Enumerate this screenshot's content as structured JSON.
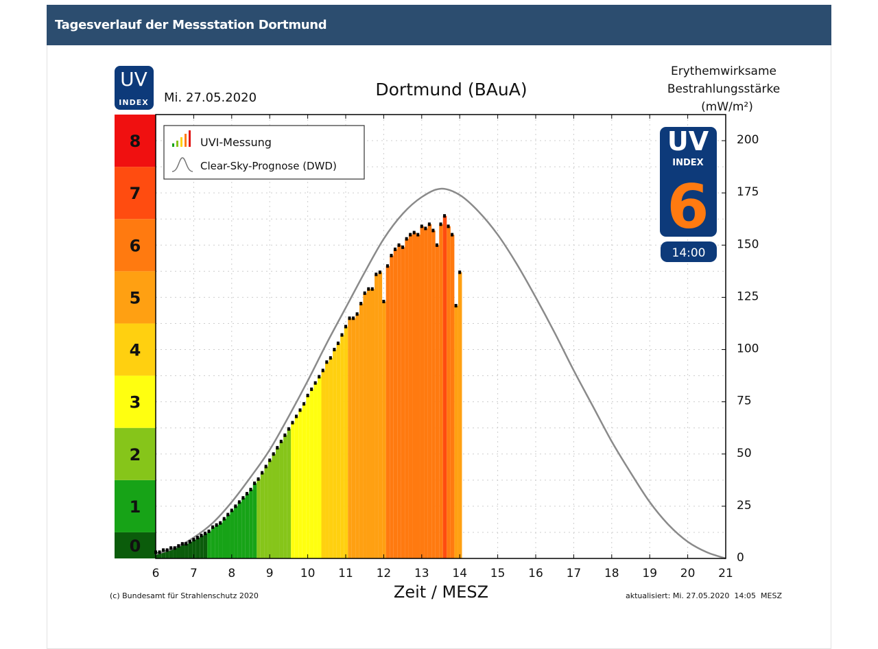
{
  "header": {
    "title": "Tagesverlauf der Messstation Dortmund"
  },
  "logo_small": {
    "line1": "UV",
    "line2": "INDEX"
  },
  "date": "Mi. 27.05.2020",
  "chart_title": "Dortmund (BAuA)",
  "right_axis_title": [
    "Erythemwirksame",
    "Bestrahlungsstärke",
    "(mW/m²)"
  ],
  "current_badge": {
    "line1": "UV",
    "line2": "INDEX",
    "value": "6",
    "time": "14:00"
  },
  "footer": {
    "copyright": "(c) Bundesamt für Strahlenschutz 2020",
    "updated": "aktualisiert: Mi. 27.05.2020  14:05  MESZ"
  },
  "colors": {
    "header": "#2c4d6f",
    "badge": "#0d3a7a",
    "badge_value": "#ff7a10",
    "uvi_levels": [
      "#0b5c0b",
      "#17a317",
      "#86c51a",
      "#ffff10",
      "#ffd010",
      "#ffa012",
      "#ff7a10",
      "#ff4c10",
      "#f01010"
    ],
    "curve": "#8a8a8a"
  },
  "chart_data": {
    "type": "bar",
    "title": "Dortmund (BAuA)",
    "xlabel": "Zeit / MESZ",
    "ylabel": "Erythemwirksame Bestrahlungsstärke (mW/m²)",
    "xlim": [
      6,
      21
    ],
    "ylim": [
      0,
      212.5
    ],
    "x_ticks": [
      "6",
      "7",
      "8",
      "9",
      "10",
      "11",
      "12",
      "13",
      "14",
      "15",
      "16",
      "17",
      "18",
      "19",
      "20",
      "21"
    ],
    "y_ticks": [
      0,
      25,
      50,
      75,
      100,
      125,
      150,
      175,
      200
    ],
    "uvi_scale": [
      "0",
      "1",
      "2",
      "3",
      "4",
      "5",
      "6",
      "7",
      "8"
    ],
    "uvi_unit_mw": 25,
    "grid": true,
    "legend_position": "top-left",
    "legend": [
      "UVI-Messung",
      "Clear-Sky-Prognose (DWD)"
    ],
    "measurement": {
      "name": "UVI-Messung",
      "start_hour": 6.0,
      "step_hours": 0.1,
      "values": [
        3,
        3,
        4,
        4,
        5,
        5,
        6,
        7,
        7,
        8,
        9,
        10,
        11,
        12,
        13,
        15,
        16,
        17,
        19,
        21,
        23,
        25,
        27,
        29,
        31,
        33,
        36,
        38,
        41,
        44,
        47,
        50,
        53,
        56,
        59,
        62,
        65,
        68,
        71,
        74,
        78,
        81,
        84,
        87,
        90,
        94,
        96,
        100,
        103,
        107,
        111,
        115,
        115,
        117,
        122,
        127,
        129,
        129,
        136,
        137,
        123,
        140,
        145,
        148,
        150,
        149,
        153,
        155,
        156,
        155,
        159,
        158,
        160,
        157,
        150,
        160,
        164,
        159,
        155,
        121,
        137
      ]
    },
    "clear_sky": {
      "name": "Clear-Sky-Prognose (DWD)",
      "x": [
        6,
        6.5,
        7,
        7.5,
        8,
        8.5,
        9,
        9.5,
        10,
        10.5,
        11,
        11.5,
        12,
        12.5,
        13,
        13.5,
        14,
        14.5,
        15,
        15.5,
        16,
        16.5,
        17,
        17.5,
        18,
        18.5,
        19,
        19.5,
        20,
        20.5,
        21
      ],
      "y": [
        2,
        5,
        10,
        17,
        27,
        39,
        52,
        68,
        85,
        103,
        120,
        137,
        153,
        165,
        173,
        177,
        174,
        166,
        155,
        141,
        125,
        108,
        90,
        73,
        56,
        41,
        27,
        16,
        8,
        3,
        0
      ]
    }
  }
}
